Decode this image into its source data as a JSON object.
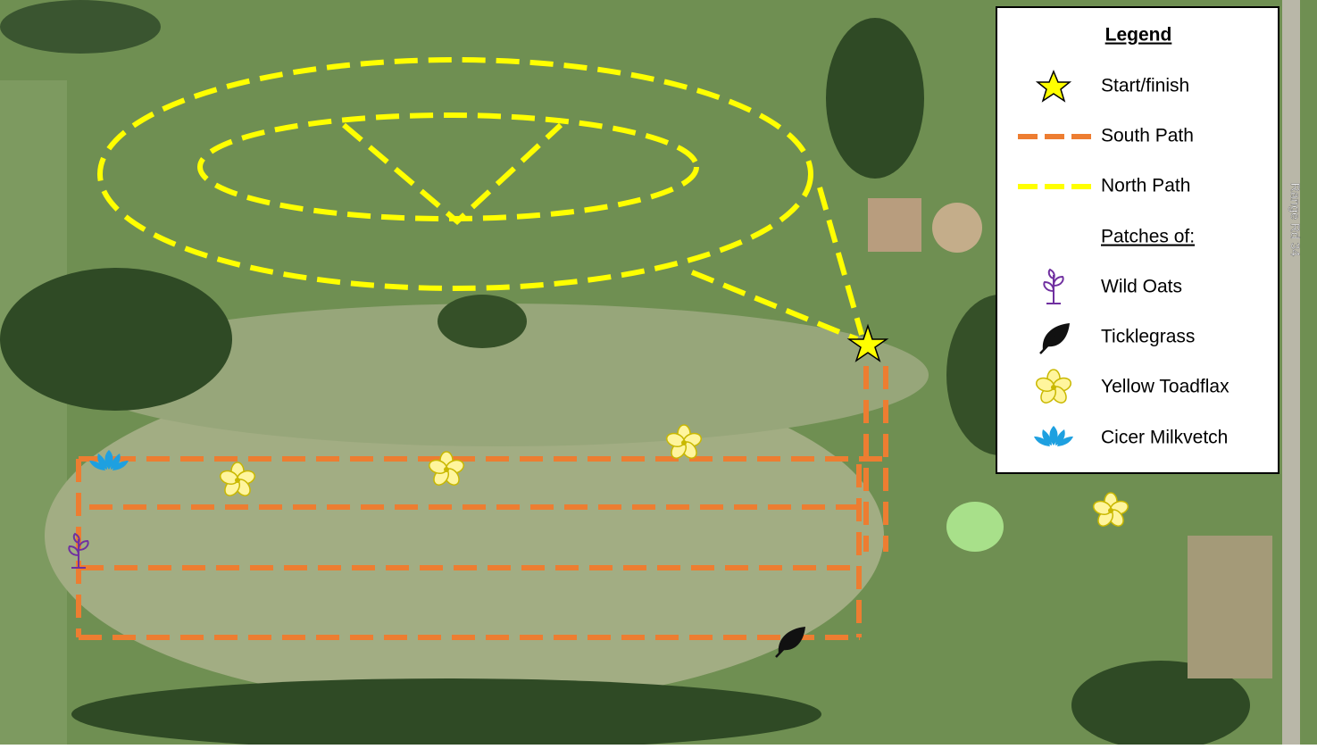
{
  "legend": {
    "title": "Legend",
    "items": [
      {
        "label": "Start/finish"
      },
      {
        "label": "South Path"
      },
      {
        "label": "North Path"
      }
    ],
    "subheading": "Patches of:",
    "patches": [
      {
        "label": "Wild Oats"
      },
      {
        "label": "Ticklegrass"
      },
      {
        "label": "Yellow Toadflax"
      },
      {
        "label": "Cicer Milkvetch"
      }
    ]
  },
  "road_label": "Range Rd 34"
}
